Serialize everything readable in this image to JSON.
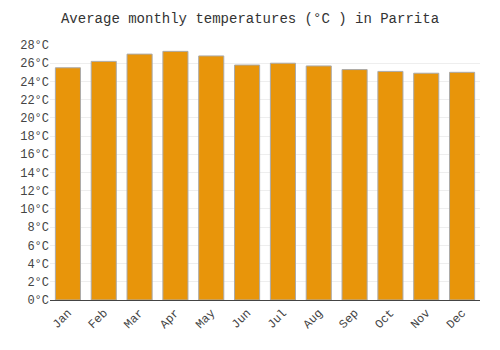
{
  "chart_data": {
    "type": "bar",
    "title": "Average monthly temperatures (°C ) in Parrita",
    "categories": [
      "Jan",
      "Feb",
      "Mar",
      "Apr",
      "May",
      "Jun",
      "Jul",
      "Aug",
      "Sep",
      "Oct",
      "Nov",
      "Dec"
    ],
    "values": [
      25.5,
      26.2,
      27.0,
      27.3,
      26.8,
      25.8,
      26.0,
      25.7,
      25.3,
      25.1,
      24.9,
      25.0
    ],
    "color": "#E8950A",
    "ylim": [
      0,
      28
    ],
    "yticks": [
      {
        "value": 0,
        "label": "0°C"
      },
      {
        "value": 2,
        "label": "2°C"
      },
      {
        "value": 4,
        "label": "4°C"
      },
      {
        "value": 6,
        "label": "6°C"
      },
      {
        "value": 8,
        "label": "8°C"
      },
      {
        "value": 10,
        "label": "10°C"
      },
      {
        "value": 12,
        "label": "12°C"
      },
      {
        "value": 14,
        "label": "14°C"
      },
      {
        "value": 16,
        "label": "16°C"
      },
      {
        "value": 18,
        "label": "18°C"
      },
      {
        "value": 20,
        "label": "20°C"
      },
      {
        "value": 22,
        "label": "22°C"
      },
      {
        "value": 24,
        "label": "24°C"
      },
      {
        "value": 26,
        "label": "26°C"
      },
      {
        "value": 28,
        "label": "28°C"
      }
    ],
    "grid": true
  }
}
